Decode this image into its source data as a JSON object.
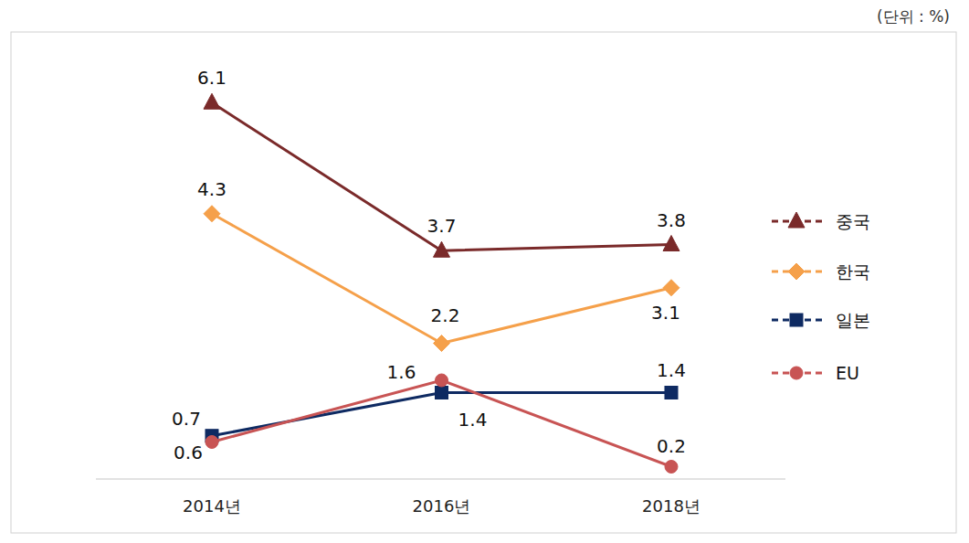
{
  "chart_data": {
    "type": "line",
    "subtitle": "(단위 : %)",
    "categories": [
      "2014년",
      "2016년",
      "2018년"
    ],
    "series": [
      {
        "name": "중국",
        "color": "#7a2a2a",
        "marker": "triangle",
        "values": [
          6.1,
          3.7,
          3.8
        ]
      },
      {
        "name": "한국",
        "color": "#f5a04a",
        "marker": "diamond",
        "values": [
          4.3,
          2.2,
          3.1
        ]
      },
      {
        "name": "일본",
        "color": "#0e2a62",
        "marker": "square",
        "values": [
          0.7,
          1.4,
          1.4
        ]
      },
      {
        "name": "EU",
        "color": "#c85454",
        "marker": "circle",
        "values": [
          0.6,
          1.6,
          0.2
        ]
      }
    ],
    "ylim": [
      0,
      7.2
    ],
    "tick_labels": "x",
    "grid": false,
    "legend": "right",
    "data_labels": true
  }
}
